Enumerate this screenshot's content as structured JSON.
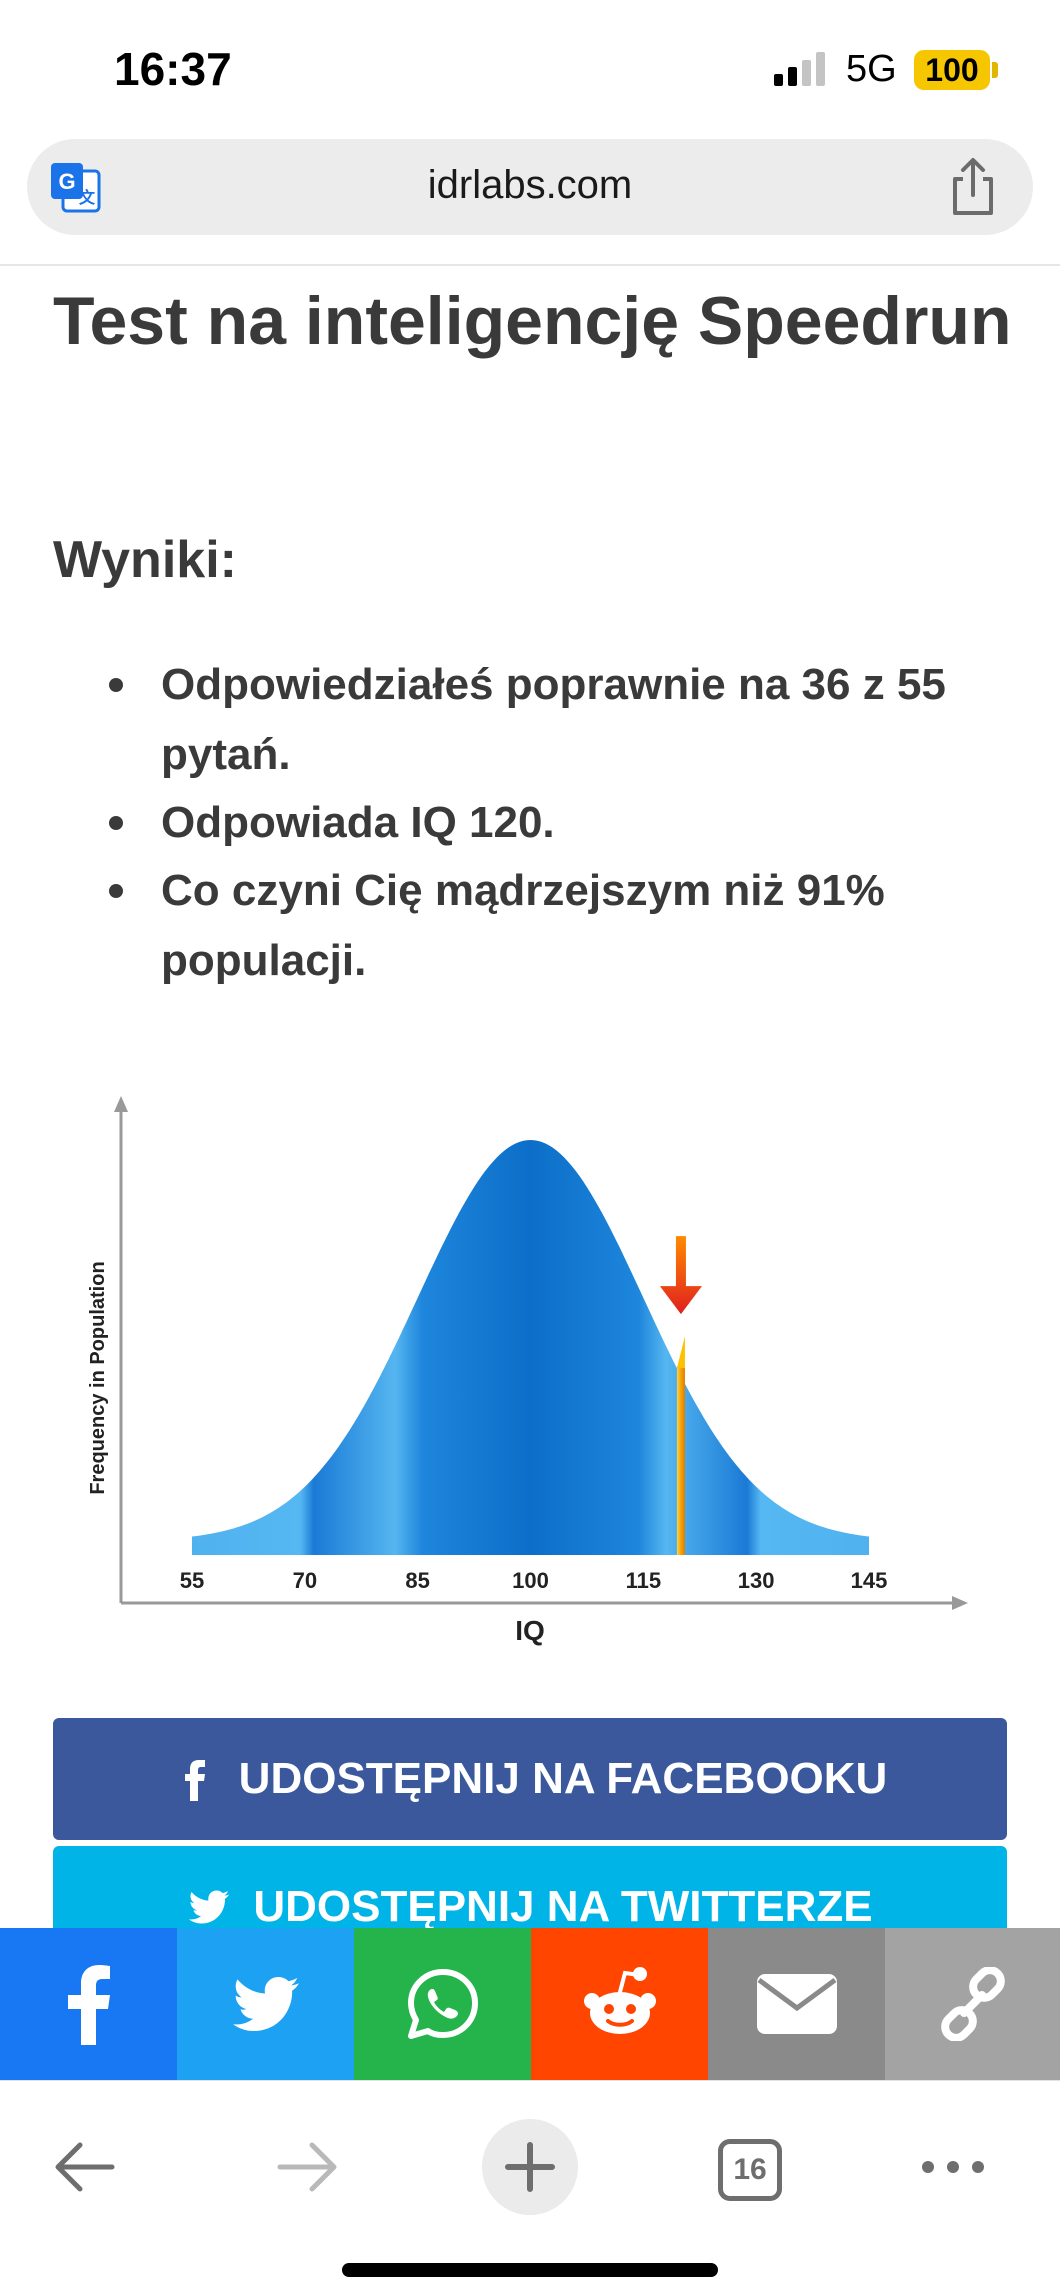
{
  "status_bar": {
    "time": "16:37",
    "network": "5G",
    "battery": "100"
  },
  "browser": {
    "url": "idrlabs.com",
    "translate_icon": "translate-icon",
    "share_icon": "share-icon"
  },
  "article": {
    "title": "Test na inteligencję Speedrun",
    "results_heading": "Wyniki:",
    "results": [
      "Odpowiedziałeś poprawnie na 36 z 55 pytań.",
      "Odpowiada IQ 120.",
      "Co czyni Cię mądrzejszym niż 91% populacji."
    ]
  },
  "chart_data": {
    "type": "area",
    "distribution": "normal",
    "mean": 100,
    "sd": 15,
    "x_ticks": [
      55,
      70,
      85,
      100,
      115,
      130,
      145
    ],
    "xlabel": "IQ",
    "ylabel": "Frequency in Population",
    "marker": {
      "value": 120
    },
    "colors": {
      "curve": "#1e86dc",
      "marker": "#f5a300",
      "arrow": "#e8401c"
    }
  },
  "share_buttons": {
    "facebook": "UDOSTĘPNIJ NA FACEBOOKU",
    "twitter": "UDOSTĘPNIJ NA TWITTERZE"
  },
  "social_strip": [
    {
      "icon": "facebook-icon",
      "color": "#1877f2"
    },
    {
      "icon": "twitter-icon",
      "color": "#1da1f2"
    },
    {
      "icon": "whatsapp-icon",
      "color": "#25b34b"
    },
    {
      "icon": "reddit-icon",
      "color": "#ff4500"
    },
    {
      "icon": "email-icon",
      "color": "#8a8a8a"
    },
    {
      "icon": "link-icon",
      "color": "#a3a3a3"
    }
  ],
  "toolbar": {
    "tab_count": "16"
  }
}
